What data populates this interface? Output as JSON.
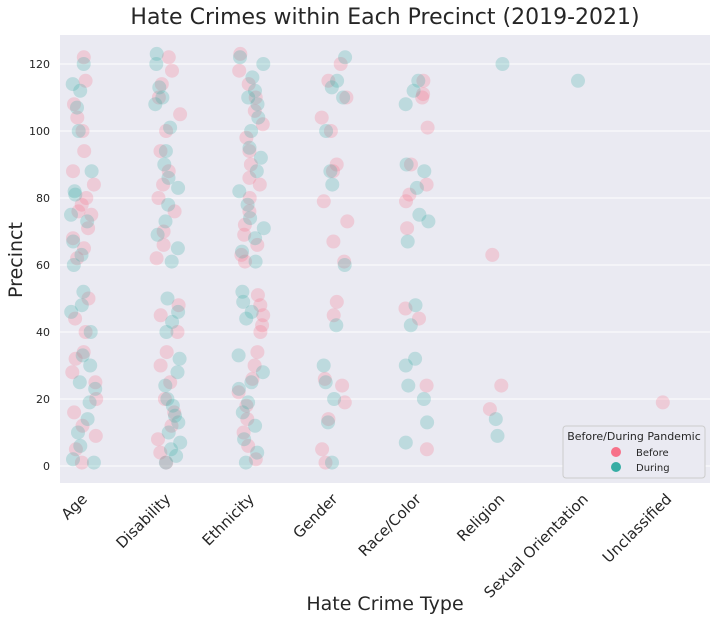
{
  "chart_data": {
    "type": "scatter",
    "title": "Hate Crimes within Each Precinct (2019-2021)",
    "xlabel": "Hate Crime Type",
    "ylabel": "Precinct",
    "categories": [
      "Age",
      "Disability",
      "Ethnicity",
      "Gender",
      "Race/Color",
      "Religion",
      "Sexual Orientation",
      "Unclassified"
    ],
    "ylim": [
      -5,
      128
    ],
    "yticks": [
      0,
      20,
      40,
      60,
      80,
      100,
      120
    ],
    "grid": true,
    "legend": {
      "title": "Before/During Pandemic",
      "placement": "bottom-right",
      "entries": [
        {
          "label": "Before",
          "color": "#f77189"
        },
        {
          "label": "During",
          "color": "#36ada4"
        }
      ]
    },
    "colors": {
      "before": "#f77189",
      "during": "#36ada4",
      "background": "#eaeaf2",
      "grid": "#ffffff"
    },
    "series": [
      {
        "name": "Before",
        "points": [
          [
            0,
            122
          ],
          [
            0,
            115
          ],
          [
            0,
            108
          ],
          [
            0,
            104
          ],
          [
            0,
            100
          ],
          [
            0,
            94
          ],
          [
            0,
            88
          ],
          [
            0,
            84
          ],
          [
            0,
            80
          ],
          [
            0,
            78
          ],
          [
            0,
            76
          ],
          [
            0,
            75
          ],
          [
            0,
            71
          ],
          [
            0,
            68
          ],
          [
            0,
            65
          ],
          [
            0,
            62
          ],
          [
            0,
            50
          ],
          [
            0,
            44
          ],
          [
            0,
            40
          ],
          [
            0,
            34
          ],
          [
            0,
            32
          ],
          [
            0,
            28
          ],
          [
            0,
            25
          ],
          [
            0,
            20
          ],
          [
            0,
            16
          ],
          [
            0,
            12
          ],
          [
            0,
            9
          ],
          [
            0,
            5
          ],
          [
            0,
            1
          ],
          [
            1,
            122
          ],
          [
            1,
            118
          ],
          [
            1,
            114
          ],
          [
            1,
            110
          ],
          [
            1,
            105
          ],
          [
            1,
            100
          ],
          [
            1,
            94
          ],
          [
            1,
            88
          ],
          [
            1,
            84
          ],
          [
            1,
            80
          ],
          [
            1,
            76
          ],
          [
            1,
            70
          ],
          [
            1,
            66
          ],
          [
            1,
            62
          ],
          [
            1,
            48
          ],
          [
            1,
            45
          ],
          [
            1,
            40
          ],
          [
            1,
            34
          ],
          [
            1,
            30
          ],
          [
            1,
            25
          ],
          [
            1,
            20
          ],
          [
            1,
            16
          ],
          [
            1,
            12
          ],
          [
            1,
            8
          ],
          [
            1,
            4
          ],
          [
            1,
            1
          ],
          [
            2,
            123
          ],
          [
            2,
            118
          ],
          [
            2,
            114
          ],
          [
            2,
            110
          ],
          [
            2,
            106
          ],
          [
            2,
            102
          ],
          [
            2,
            98
          ],
          [
            2,
            94
          ],
          [
            2,
            90
          ],
          [
            2,
            86
          ],
          [
            2,
            84
          ],
          [
            2,
            80
          ],
          [
            2,
            76
          ],
          [
            2,
            72
          ],
          [
            2,
            69
          ],
          [
            2,
            66
          ],
          [
            2,
            63
          ],
          [
            2,
            61
          ],
          [
            2,
            51
          ],
          [
            2,
            48
          ],
          [
            2,
            45
          ],
          [
            2,
            42
          ],
          [
            2,
            40
          ],
          [
            2,
            34
          ],
          [
            2,
            30
          ],
          [
            2,
            26
          ],
          [
            2,
            22
          ],
          [
            2,
            18
          ],
          [
            2,
            14
          ],
          [
            2,
            10
          ],
          [
            2,
            6
          ],
          [
            2,
            2
          ],
          [
            3,
            120
          ],
          [
            3,
            115
          ],
          [
            3,
            110
          ],
          [
            3,
            104
          ],
          [
            3,
            100
          ],
          [
            3,
            90
          ],
          [
            3,
            88
          ],
          [
            3,
            79
          ],
          [
            3,
            73
          ],
          [
            3,
            67
          ],
          [
            3,
            61
          ],
          [
            3,
            49
          ],
          [
            3,
            45
          ],
          [
            3,
            26
          ],
          [
            3,
            24
          ],
          [
            3,
            19
          ],
          [
            3,
            14
          ],
          [
            3,
            5
          ],
          [
            3,
            1
          ],
          [
            4,
            115
          ],
          [
            4,
            111
          ],
          [
            4,
            110
          ],
          [
            4,
            101
          ],
          [
            4,
            90
          ],
          [
            4,
            84
          ],
          [
            4,
            81
          ],
          [
            4,
            79
          ],
          [
            4,
            71
          ],
          [
            4,
            47
          ],
          [
            4,
            44
          ],
          [
            4,
            24
          ],
          [
            4,
            5
          ],
          [
            5,
            63
          ],
          [
            5,
            24
          ],
          [
            5,
            17
          ],
          [
            7,
            19
          ]
        ]
      },
      {
        "name": "During",
        "points": [
          [
            0,
            120
          ],
          [
            0,
            114
          ],
          [
            0,
            112
          ],
          [
            0,
            107
          ],
          [
            0,
            100
          ],
          [
            0,
            88
          ],
          [
            0,
            82
          ],
          [
            0,
            81
          ],
          [
            0,
            75
          ],
          [
            0,
            73
          ],
          [
            0,
            67
          ],
          [
            0,
            63
          ],
          [
            0,
            60
          ],
          [
            0,
            52
          ],
          [
            0,
            48
          ],
          [
            0,
            46
          ],
          [
            0,
            40
          ],
          [
            0,
            33
          ],
          [
            0,
            30
          ],
          [
            0,
            25
          ],
          [
            0,
            23
          ],
          [
            0,
            19
          ],
          [
            0,
            14
          ],
          [
            0,
            10
          ],
          [
            0,
            6
          ],
          [
            0,
            2
          ],
          [
            0,
            1
          ],
          [
            1,
            123
          ],
          [
            1,
            120
          ],
          [
            1,
            113
          ],
          [
            1,
            110
          ],
          [
            1,
            108
          ],
          [
            1,
            101
          ],
          [
            1,
            94
          ],
          [
            1,
            90
          ],
          [
            1,
            86
          ],
          [
            1,
            83
          ],
          [
            1,
            78
          ],
          [
            1,
            73
          ],
          [
            1,
            69
          ],
          [
            1,
            65
          ],
          [
            1,
            61
          ],
          [
            1,
            50
          ],
          [
            1,
            46
          ],
          [
            1,
            43
          ],
          [
            1,
            40
          ],
          [
            1,
            32
          ],
          [
            1,
            28
          ],
          [
            1,
            24
          ],
          [
            1,
            20
          ],
          [
            1,
            18
          ],
          [
            1,
            15
          ],
          [
            1,
            13
          ],
          [
            1,
            10
          ],
          [
            1,
            7
          ],
          [
            1,
            5
          ],
          [
            1,
            3
          ],
          [
            1,
            1
          ],
          [
            2,
            122
          ],
          [
            2,
            120
          ],
          [
            2,
            116
          ],
          [
            2,
            112
          ],
          [
            2,
            110
          ],
          [
            2,
            108
          ],
          [
            2,
            104
          ],
          [
            2,
            100
          ],
          [
            2,
            95
          ],
          [
            2,
            92
          ],
          [
            2,
            88
          ],
          [
            2,
            82
          ],
          [
            2,
            78
          ],
          [
            2,
            74
          ],
          [
            2,
            71
          ],
          [
            2,
            68
          ],
          [
            2,
            64
          ],
          [
            2,
            61
          ],
          [
            2,
            52
          ],
          [
            2,
            49
          ],
          [
            2,
            46
          ],
          [
            2,
            44
          ],
          [
            2,
            33
          ],
          [
            2,
            28
          ],
          [
            2,
            25
          ],
          [
            2,
            23
          ],
          [
            2,
            19
          ],
          [
            2,
            16
          ],
          [
            2,
            12
          ],
          [
            2,
            8
          ],
          [
            2,
            4
          ],
          [
            2,
            1
          ],
          [
            3,
            122
          ],
          [
            3,
            115
          ],
          [
            3,
            113
          ],
          [
            3,
            110
          ],
          [
            3,
            100
          ],
          [
            3,
            88
          ],
          [
            3,
            84
          ],
          [
            3,
            60
          ],
          [
            3,
            42
          ],
          [
            3,
            30
          ],
          [
            3,
            25
          ],
          [
            3,
            20
          ],
          [
            3,
            13
          ],
          [
            3,
            1
          ],
          [
            4,
            115
          ],
          [
            4,
            112
          ],
          [
            4,
            108
          ],
          [
            4,
            90
          ],
          [
            4,
            88
          ],
          [
            4,
            83
          ],
          [
            4,
            75
          ],
          [
            4,
            73
          ],
          [
            4,
            67
          ],
          [
            4,
            48
          ],
          [
            4,
            42
          ],
          [
            4,
            32
          ],
          [
            4,
            30
          ],
          [
            4,
            24
          ],
          [
            4,
            20
          ],
          [
            4,
            13
          ],
          [
            4,
            7
          ],
          [
            5,
            120
          ],
          [
            5,
            14
          ],
          [
            5,
            9
          ],
          [
            6,
            115
          ]
        ]
      }
    ]
  }
}
